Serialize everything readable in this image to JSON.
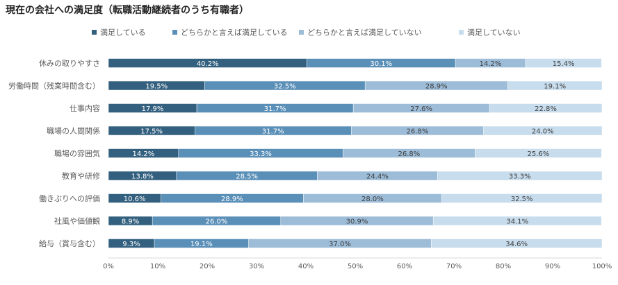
{
  "chart_data": {
    "type": "bar",
    "orientation": "horizontal",
    "stacked": true,
    "title": "現在の会社への満足度（転職活動継続者のうち有職者）",
    "categories": [
      "休みの取りやすさ",
      "労働時間（残業時間含む）",
      "仕事内容",
      "職場の人間関係",
      "職場の雰囲気",
      "教育や研修",
      "働きぶりへの評価",
      "社風や価値観",
      "給与（賞与含む）"
    ],
    "series": [
      {
        "name": "満足している",
        "color": "#33607f",
        "label_color": "#ffffff",
        "values": [
          40.2,
          19.5,
          17.9,
          17.5,
          14.2,
          13.8,
          10.6,
          8.9,
          9.3
        ],
        "labels": [
          "40.2%",
          "19.5%",
          "17.9%",
          "17.5%",
          "14.2%",
          "13.8%",
          "10.6%",
          "8.9%",
          "9.3%"
        ]
      },
      {
        "name": "どちらかと言えば満足している",
        "color": "#5a8fb8",
        "label_color": "#ffffff",
        "values": [
          30.1,
          32.5,
          31.7,
          31.7,
          33.3,
          28.5,
          28.9,
          26.0,
          19.1
        ],
        "labels": [
          "30.1%",
          "32.5%",
          "31.7%",
          "31.7%",
          "33.3%",
          "28.5%",
          "28.9%",
          "26.0%",
          "19.1%"
        ]
      },
      {
        "name": "どちらかと言えば満足していない",
        "color": "#9cbcd8",
        "label_color": "#404040",
        "values": [
          14.2,
          28.9,
          27.6,
          26.8,
          26.8,
          24.4,
          28.0,
          30.9,
          37.0
        ],
        "labels": [
          "14.2%",
          "28.9%",
          "27.6%",
          "26.8%",
          "26.8%",
          "24.4%",
          "28.0%",
          "30.9%",
          "37.0%"
        ]
      },
      {
        "name": "満足していない",
        "color": "#c7dcec",
        "label_color": "#404040",
        "values": [
          15.4,
          19.1,
          22.8,
          24.0,
          25.6,
          33.3,
          32.5,
          34.1,
          34.6
        ],
        "labels": [
          "15.4%",
          "19.1%",
          "22.8%",
          "24.0%",
          "25.6%",
          "33.3%",
          "32.5%",
          "34.1%",
          "34.6%"
        ]
      }
    ],
    "xlim": [
      0,
      100
    ],
    "x_ticks": [
      "0%",
      "10%",
      "20%",
      "30%",
      "40%",
      "50%",
      "60%",
      "70%",
      "80%",
      "90%",
      "100%"
    ],
    "legend_position": "top",
    "grid": false,
    "xlabel": "",
    "ylabel": ""
  }
}
